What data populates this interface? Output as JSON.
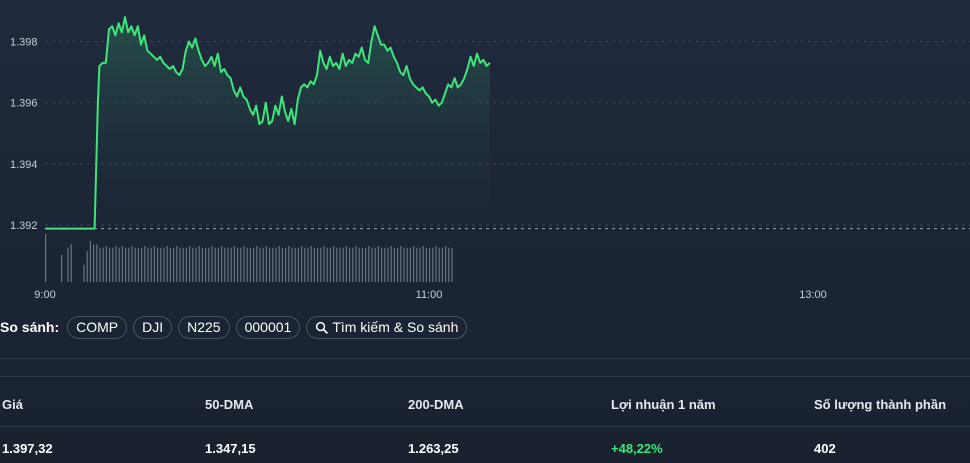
{
  "chart_data": {
    "type": "line",
    "y_axis": {
      "ticks": [
        "1.398",
        "1.396",
        "1.394",
        "1.392"
      ],
      "tick_values": [
        1398,
        1396,
        1394,
        1392
      ],
      "ylim": [
        1391.9,
        1398.9
      ]
    },
    "x_axis": {
      "ticks": [
        "9:00",
        "11:00",
        "13:00"
      ],
      "tick_minutes": [
        540,
        660,
        780
      ],
      "xlim": [
        540,
        800
      ]
    },
    "reference_line": 1391.88,
    "colors": {
      "line": "#3ee67a",
      "volume": "#6b7380",
      "grid": "#5a6475"
    },
    "series": [
      {
        "values": [
          [
            540,
            1391.88
          ],
          [
            543,
            1391.88
          ],
          [
            546,
            1391.88
          ],
          [
            549,
            1391.88
          ],
          [
            552,
            1391.88
          ],
          [
            555,
            1391.88
          ],
          [
            555.5,
            1391.88
          ],
          [
            556.5,
            1395.9
          ],
          [
            557,
            1397.2
          ],
          [
            558,
            1397.3
          ],
          [
            559,
            1397.3
          ],
          [
            560,
            1398.4
          ],
          [
            561,
            1398.5
          ],
          [
            562,
            1398.2
          ],
          [
            563,
            1398.6
          ],
          [
            564,
            1398.3
          ],
          [
            565,
            1398.8
          ],
          [
            566,
            1398.3
          ],
          [
            567,
            1398.5
          ],
          [
            568,
            1398.2
          ],
          [
            569,
            1398.5
          ],
          [
            570,
            1397.9
          ],
          [
            571,
            1398.2
          ],
          [
            572,
            1397.7
          ],
          [
            573,
            1397.6
          ],
          [
            574,
            1397.5
          ],
          [
            575,
            1397.4
          ],
          [
            576,
            1397.5
          ],
          [
            577,
            1397.3
          ],
          [
            578,
            1397.2
          ],
          [
            579,
            1397.1
          ],
          [
            580,
            1397.2
          ],
          [
            581,
            1397.0
          ],
          [
            582,
            1396.9
          ],
          [
            583,
            1397.1
          ],
          [
            584,
            1397.7
          ],
          [
            585,
            1398.0
          ],
          [
            586,
            1397.8
          ],
          [
            587,
            1398.1
          ],
          [
            588,
            1397.7
          ],
          [
            589,
            1397.4
          ],
          [
            590,
            1397.2
          ],
          [
            591,
            1397.3
          ],
          [
            592,
            1397.5
          ],
          [
            593,
            1397.2
          ],
          [
            594,
            1397.6
          ],
          [
            595,
            1397.0
          ],
          [
            596,
            1397.1
          ],
          [
            597,
            1396.9
          ],
          [
            598,
            1396.8
          ],
          [
            599,
            1396.4
          ],
          [
            600,
            1396.2
          ],
          [
            601,
            1396.5
          ],
          [
            602,
            1396.2
          ],
          [
            603,
            1396.1
          ],
          [
            604,
            1395.8
          ],
          [
            605,
            1395.6
          ],
          [
            606,
            1395.9
          ],
          [
            607,
            1395.3
          ],
          [
            608,
            1395.4
          ],
          [
            609,
            1396.0
          ],
          [
            610,
            1395.3
          ],
          [
            611,
            1395.4
          ],
          [
            612,
            1395.9
          ],
          [
            613,
            1395.6
          ],
          [
            614,
            1396.2
          ],
          [
            615,
            1395.7
          ],
          [
            616,
            1395.4
          ],
          [
            617,
            1395.8
          ],
          [
            618,
            1395.3
          ],
          [
            619,
            1396.1
          ],
          [
            620,
            1396.5
          ],
          [
            621,
            1396.6
          ],
          [
            622,
            1396.5
          ],
          [
            623,
            1396.7
          ],
          [
            624,
            1396.6
          ],
          [
            625,
            1396.9
          ],
          [
            626,
            1397.7
          ],
          [
            627,
            1397.3
          ],
          [
            628,
            1397.1
          ],
          [
            629,
            1397.5
          ],
          [
            630,
            1397.2
          ],
          [
            631,
            1397.3
          ],
          [
            632,
            1397.1
          ],
          [
            633,
            1397.6
          ],
          [
            634,
            1397.2
          ],
          [
            635,
            1397.4
          ],
          [
            636,
            1397.3
          ],
          [
            637,
            1397.6
          ],
          [
            638,
            1397.5
          ],
          [
            639,
            1397.8
          ],
          [
            640,
            1397.4
          ],
          [
            641,
            1397.3
          ],
          [
            642,
            1398.0
          ],
          [
            643,
            1398.5
          ],
          [
            644,
            1398.2
          ],
          [
            645,
            1397.9
          ],
          [
            646,
            1397.9
          ],
          [
            647,
            1397.7
          ],
          [
            648,
            1397.8
          ],
          [
            649,
            1397.5
          ],
          [
            650,
            1397.3
          ],
          [
            651,
            1397.0
          ],
          [
            652,
            1396.9
          ],
          [
            653,
            1397.2
          ],
          [
            654,
            1396.8
          ],
          [
            655,
            1396.6
          ],
          [
            656,
            1396.5
          ],
          [
            657,
            1396.4
          ],
          [
            658,
            1396.5
          ],
          [
            659,
            1396.3
          ],
          [
            660,
            1396.2
          ],
          [
            661,
            1396.0
          ],
          [
            662,
            1396.1
          ],
          [
            663,
            1395.9
          ],
          [
            664,
            1396.0
          ],
          [
            665,
            1396.3
          ],
          [
            666,
            1396.6
          ],
          [
            667,
            1396.5
          ],
          [
            668,
            1396.8
          ],
          [
            669,
            1396.5
          ],
          [
            670,
            1396.6
          ],
          [
            671,
            1396.8
          ],
          [
            672,
            1397.1
          ],
          [
            673,
            1397.5
          ],
          [
            674,
            1397.2
          ],
          [
            675,
            1397.6
          ],
          [
            676,
            1397.3
          ],
          [
            677,
            1397.4
          ],
          [
            678,
            1397.2
          ],
          [
            679,
            1397.3
          ]
        ]
      }
    ],
    "volume": [
      1.4,
      0,
      0,
      0,
      0,
      0.8,
      0,
      1.0,
      1.1,
      0,
      0,
      0,
      0.5,
      0.9,
      1.2,
      1.1,
      1.1,
      1.0,
      1.0,
      1.05,
      1.0,
      1.0,
      1.05,
      1.0,
      1.05,
      1.0,
      1.0,
      1.05,
      1.0,
      1.0,
      1.0,
      1.05,
      1.0,
      1.0,
      1.05,
      1.0,
      1.0,
      1.0,
      1.05,
      1.0,
      1.0,
      1.05,
      1.0,
      1.0,
      1.0,
      1.05,
      1.0,
      1.0,
      1.05,
      1.0,
      1.0,
      1.0,
      1.05,
      1.0,
      1.0,
      1.05,
      1.0,
      1.0,
      1.0,
      1.05,
      1.0,
      1.0,
      1.05,
      1.0,
      1.0,
      1.0,
      1.05,
      1.0,
      1.0,
      1.05,
      1.0,
      1.0,
      1.0,
      1.05,
      1.0,
      1.0,
      1.05,
      1.0,
      1.0,
      1.0,
      1.05,
      1.0,
      1.0,
      1.05,
      1.0,
      1.0,
      1.0,
      1.05,
      1.0,
      1.0,
      1.05,
      1.0,
      1.0,
      1.0,
      1.05,
      1.0,
      1.0,
      1.05,
      1.0,
      1.0,
      1.0,
      1.05,
      1.0,
      1.0,
      1.05,
      1.0,
      1.0,
      1.0,
      1.05,
      1.0,
      1.0,
      1.05,
      1.0,
      1.0,
      1.0,
      1.05,
      1.0,
      1.0,
      1.05,
      1.0,
      1.0,
      1.0,
      1.05,
      1.0,
      1.0,
      1.05,
      1.0,
      1.0
    ]
  },
  "compare": {
    "label": "So sánh:",
    "chips": [
      "COMP",
      "DJI",
      "N225",
      "000001"
    ],
    "search_label": "Tìm kiếm & So sánh"
  },
  "stats": {
    "headers": [
      "Giá",
      "50-DMA",
      "200-DMA",
      "Lợi nhuận 1 năm",
      "Số lượng thành phần"
    ],
    "values": [
      "1.397,32",
      "1.347,15",
      "1.263,25",
      "+48,22%",
      "402"
    ],
    "positive_color": "#3ee67a"
  }
}
